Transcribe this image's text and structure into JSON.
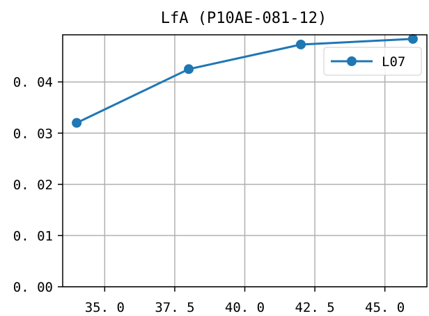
{
  "chart_data": {
    "type": "line",
    "title": "LfA (P10AE-081-12)",
    "xlabel": "",
    "ylabel": "",
    "x": [
      34,
      38,
      42,
      46
    ],
    "series": [
      {
        "name": "L07",
        "values": [
          0.032,
          0.0425,
          0.0473,
          0.0484
        ],
        "color": "#1f77b4",
        "marker": "circle"
      }
    ],
    "xlim": [
      33.5,
      46.5
    ],
    "ylim": [
      0.0,
      0.0492
    ],
    "xticks": [
      35.0,
      37.5,
      40.0,
      42.5,
      45.0
    ],
    "xtick_labels": [
      "35. 0",
      "37. 5",
      "40. 0",
      "42. 5",
      "45. 0"
    ],
    "yticks": [
      0.0,
      0.01,
      0.02,
      0.03,
      0.04
    ],
    "ytick_labels": [
      "0. 00",
      "0. 01",
      "0. 02",
      "0. 03",
      "0. 04"
    ],
    "grid": true,
    "legend_position": "upper right"
  }
}
